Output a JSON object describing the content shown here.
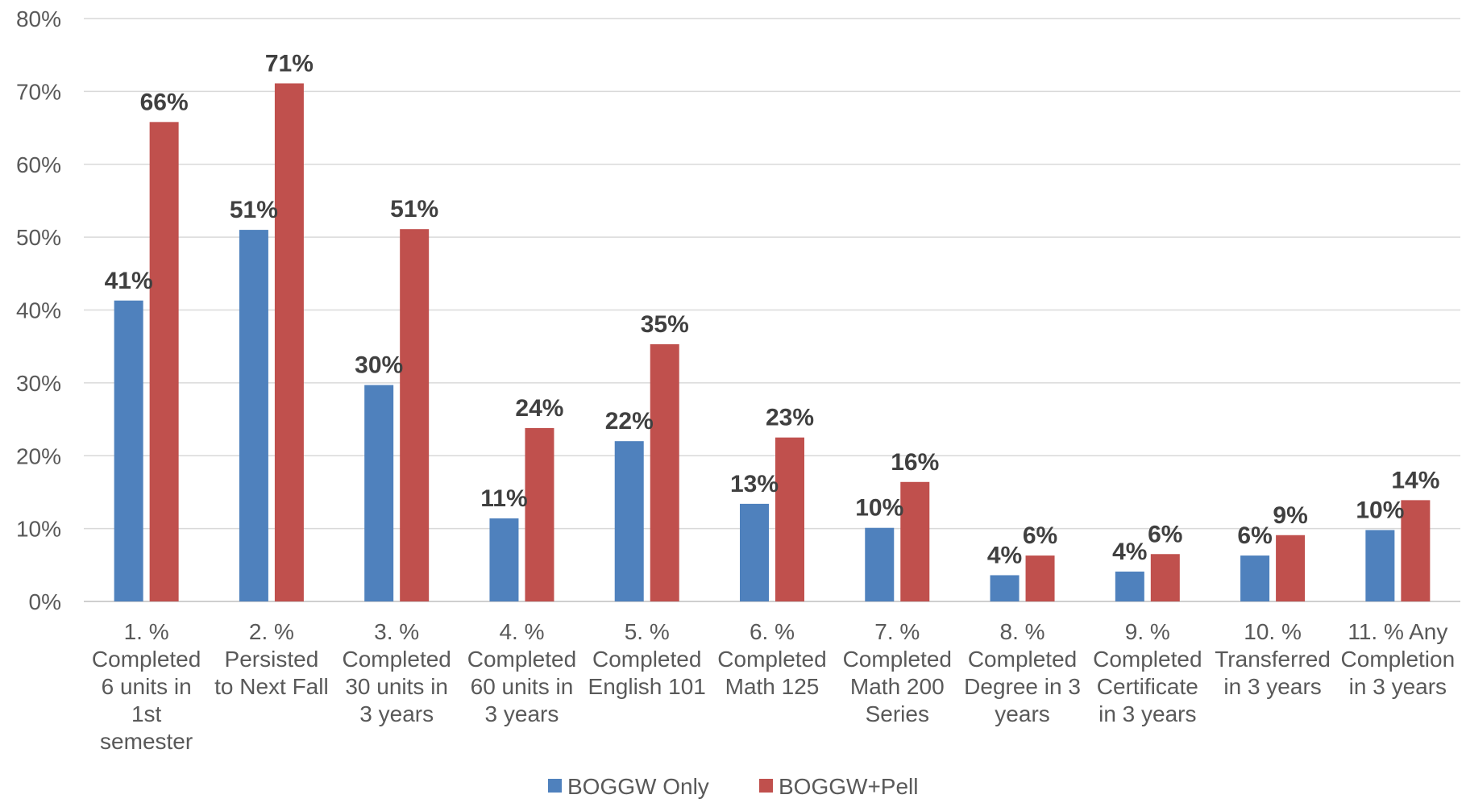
{
  "chart_data": {
    "type": "bar",
    "title": "",
    "xlabel": "",
    "ylabel": "",
    "ylim": [
      0,
      80
    ],
    "y_ticks": [
      "0%",
      "10%",
      "20%",
      "30%",
      "40%",
      "50%",
      "60%",
      "70%",
      "80%"
    ],
    "y_tick_values": [
      0,
      10,
      20,
      30,
      40,
      50,
      60,
      70,
      80
    ],
    "grid": true,
    "legend_position": "bottom",
    "categories": [
      [
        "1. %",
        "Completed",
        "6 units in",
        "1st",
        "semester"
      ],
      [
        "2. %",
        "Persisted",
        "to Next Fall"
      ],
      [
        "3. %",
        "Completed",
        "30 units in",
        "3 years"
      ],
      [
        "4. %",
        "Completed",
        "60 units in",
        "3 years"
      ],
      [
        "5. %",
        "Completed",
        "English 101"
      ],
      [
        "6. %",
        "Completed",
        "Math 125"
      ],
      [
        "7. %",
        "Completed",
        "Math 200",
        "Series"
      ],
      [
        "8. %",
        "Completed",
        "Degree in 3",
        "years"
      ],
      [
        "9. %",
        "Completed",
        "Certificate",
        "in 3 years"
      ],
      [
        "10. %",
        "Transferred",
        "in 3 years"
      ],
      [
        "11. % Any",
        "Completion",
        "in 3 years"
      ]
    ],
    "series": [
      {
        "name": "BOGGW Only",
        "color": "#4F81BD",
        "values": [
          41.3,
          51.0,
          29.7,
          11.4,
          22.0,
          13.4,
          10.1,
          3.6,
          4.1,
          6.3,
          9.8
        ],
        "labels": [
          "41%",
          "51%",
          "30%",
          "11%",
          "22%",
          "13%",
          "10%",
          "4%",
          "4%",
          "6%",
          "10%"
        ]
      },
      {
        "name": "BOGGW+Pell",
        "color": "#C0504D",
        "values": [
          65.8,
          71.1,
          51.1,
          23.8,
          35.3,
          22.5,
          16.4,
          6.3,
          6.5,
          9.1,
          13.9
        ],
        "labels": [
          "66%",
          "71%",
          "51%",
          "24%",
          "35%",
          "23%",
          "16%",
          "6%",
          "6%",
          "9%",
          "14%"
        ]
      }
    ]
  }
}
